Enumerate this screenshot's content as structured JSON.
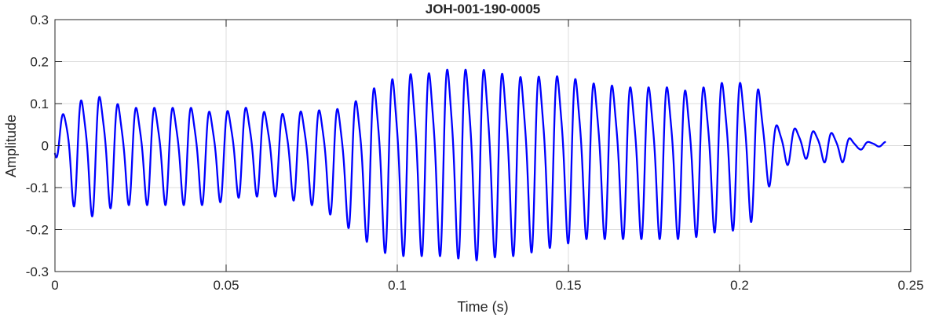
{
  "chart_data": {
    "type": "line",
    "title": "JOH-001-190-0005",
    "xlabel": "Time (s)",
    "ylabel": "Amplitude",
    "xlim": [
      0,
      0.25
    ],
    "ylim": [
      -0.3,
      0.3
    ],
    "x_ticks": [
      0,
      0.05,
      0.1,
      0.15,
      0.2,
      0.25
    ],
    "x_tick_labels": [
      "0",
      "0.05",
      "0.1",
      "0.15",
      "0.2",
      "0.25"
    ],
    "y_ticks": [
      -0.3,
      -0.2,
      -0.1,
      0,
      0.1,
      0.2,
      0.3
    ],
    "y_tick_labels": [
      "-0.3",
      "-0.2",
      "-0.1",
      "0",
      "0.1",
      "0.2",
      "0.3"
    ],
    "grid": true,
    "legend": "none",
    "colors": {
      "line": "#0000ff",
      "grid": "#dcdcdc",
      "axes": "#262626"
    },
    "series": [
      {
        "x": [
          0,
          0.005,
          0.01,
          0.015,
          0.02,
          0.025,
          0.03,
          0.035,
          0.04,
          0.045,
          0.05,
          0.055,
          0.06,
          0.065,
          0.07,
          0.075,
          0.08,
          0.085,
          0.09,
          0.095,
          0.1,
          0.105,
          0.11,
          0.115,
          0.12,
          0.125,
          0.13,
          0.135,
          0.14,
          0.145,
          0.15,
          0.155,
          0.16,
          0.165,
          0.17,
          0.175,
          0.18,
          0.185,
          0.19,
          0.195,
          0.2,
          0.205,
          0.21,
          0.215,
          0.22,
          0.225,
          0.23,
          0.235,
          0.2425
        ],
        "upper": [
          0.06,
          0.12,
          0.14,
          0.14,
          0.11,
          0.11,
          0.11,
          0.11,
          0.11,
          0.1,
          0.1,
          0.11,
          0.1,
          0.09,
          0.1,
          0.1,
          0.11,
          0.11,
          0.15,
          0.18,
          0.2,
          0.21,
          0.21,
          0.22,
          0.22,
          0.22,
          0.21,
          0.2,
          0.2,
          0.2,
          0.2,
          0.18,
          0.18,
          0.17,
          0.17,
          0.17,
          0.17,
          0.16,
          0.17,
          0.18,
          0.18,
          0.17,
          0.06,
          0.05,
          0.04,
          0.04,
          0.03,
          0.01,
          0.01
        ],
        "lower": [
          -0.02,
          -0.14,
          -0.17,
          -0.15,
          -0.14,
          -0.14,
          -0.14,
          -0.14,
          -0.14,
          -0.14,
          -0.13,
          -0.12,
          -0.12,
          -0.12,
          -0.13,
          -0.14,
          -0.16,
          -0.19,
          -0.22,
          -0.25,
          -0.26,
          -0.26,
          -0.26,
          -0.26,
          -0.27,
          -0.27,
          -0.26,
          -0.26,
          -0.25,
          -0.24,
          -0.23,
          -0.22,
          -0.22,
          -0.22,
          -0.22,
          -0.22,
          -0.22,
          -0.22,
          -0.21,
          -0.2,
          -0.2,
          -0.17,
          -0.07,
          -0.04,
          -0.03,
          -0.04,
          -0.04,
          -0.01,
          0.0
        ]
      }
    ]
  }
}
